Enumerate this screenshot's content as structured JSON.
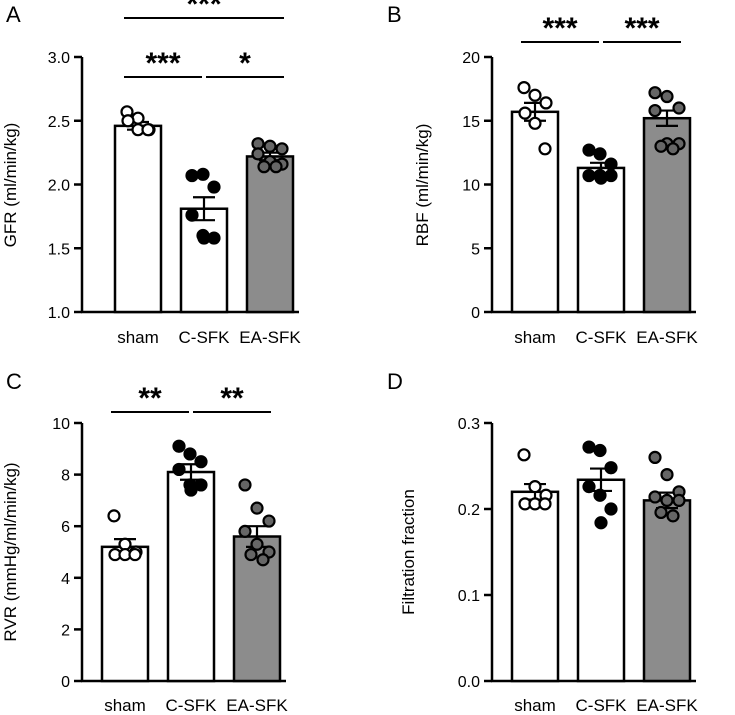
{
  "colors": {
    "open": "#ffffff",
    "filled": "#000000",
    "grey": "#8c8c8c",
    "greyDot": "#666666"
  },
  "chart_data": [
    {
      "panel": "A",
      "type": "bar",
      "ylabel": "GFR (ml/min/kg)",
      "ylim": [
        1.0,
        3.0
      ],
      "yticks": [
        1.0,
        1.5,
        2.0,
        2.5,
        3.0
      ],
      "tickLabels": [
        "1.0",
        "1.5",
        "2.0",
        "2.5",
        "3.0"
      ],
      "categories": [
        "sham",
        "C-SFK",
        "EA-SFK"
      ],
      "means": [
        2.46,
        1.81,
        2.22
      ],
      "sem": [
        0.03,
        0.09,
        0.03
      ],
      "points": [
        [
          2.57,
          2.52,
          2.43,
          2.5,
          2.43,
          2.43
        ],
        [
          2.07,
          2.08,
          1.98,
          1.76,
          1.6,
          1.58,
          1.58
        ],
        [
          2.32,
          2.3,
          2.28,
          2.24,
          2.18,
          2.16,
          2.14,
          2.14
        ]
      ],
      "brackets": [
        {
          "from": 0,
          "to": 2,
          "label": "***",
          "level": 0
        },
        {
          "from": 0,
          "to": 1,
          "label": "***",
          "level": 1
        },
        {
          "from": 1,
          "to": 2,
          "label": "*",
          "level": 1
        }
      ]
    },
    {
      "panel": "B",
      "type": "bar",
      "ylabel": "RBF (ml/min/kg)",
      "ylim": [
        0,
        20
      ],
      "yticks": [
        0,
        5,
        10,
        15,
        20
      ],
      "tickLabels": [
        "0",
        "5",
        "10",
        "15",
        "20"
      ],
      "categories": [
        "sham",
        "C-SFK",
        "EA-SFK"
      ],
      "means": [
        15.7,
        11.3,
        15.2
      ],
      "sem": [
        0.7,
        0.4,
        0.6
      ],
      "points": [
        [
          17.6,
          17.0,
          16.4,
          15.6,
          14.8,
          12.8
        ],
        [
          12.7,
          12.4,
          11.6,
          10.7,
          10.7,
          10.7,
          10.5
        ],
        [
          17.2,
          16.9,
          16.0,
          15.8,
          13.2,
          13.2,
          13.0,
          12.8
        ]
      ],
      "brackets": [
        {
          "from": 0,
          "to": 1,
          "label": "***",
          "level": 1
        },
        {
          "from": 1,
          "to": 2,
          "label": "***",
          "level": 1
        }
      ]
    },
    {
      "panel": "C",
      "type": "bar",
      "ylabel": "RVR (mmHg/ml/min/kg)",
      "ylim": [
        0,
        10
      ],
      "yticks": [
        0,
        2,
        4,
        6,
        8,
        10
      ],
      "tickLabels": [
        "0",
        "2",
        "4",
        "6",
        "8",
        "10"
      ],
      "categories": [
        "sham",
        "C-SFK",
        "EA-SFK"
      ],
      "means": [
        5.2,
        8.1,
        5.6
      ],
      "sem": [
        0.3,
        0.3,
        0.4
      ],
      "points": [
        [
          6.4,
          5.3,
          5.0,
          4.9,
          4.9,
          4.9
        ],
        [
          9.1,
          8.8,
          8.5,
          8.2,
          7.6,
          7.6,
          7.4
        ],
        [
          7.6,
          6.7,
          6.2,
          5.8,
          5.3,
          5.0,
          4.9,
          4.7
        ]
      ],
      "brackets": [
        {
          "from": 0,
          "to": 1,
          "label": "**",
          "level": 1
        },
        {
          "from": 1,
          "to": 2,
          "label": "**",
          "level": 1
        }
      ]
    },
    {
      "panel": "D",
      "type": "bar",
      "ylabel": "Filtration fraction",
      "ylim": [
        0.0,
        0.3
      ],
      "yticks": [
        0.0,
        0.1,
        0.2,
        0.3
      ],
      "tickLabels": [
        "0.0",
        "0.1",
        "0.2",
        "0.3"
      ],
      "categories": [
        "sham",
        "C-SFK",
        "EA-SFK"
      ],
      "means": [
        0.22,
        0.234,
        0.21
      ],
      "sem": [
        0.009,
        0.013,
        0.009
      ],
      "points": [
        [
          0.263,
          0.226,
          0.216,
          0.206,
          0.206,
          0.206
        ],
        [
          0.272,
          0.268,
          0.248,
          0.226,
          0.216,
          0.2,
          0.184
        ],
        [
          0.26,
          0.24,
          0.22,
          0.214,
          0.21,
          0.21,
          0.196,
          0.192
        ]
      ],
      "brackets": []
    }
  ]
}
